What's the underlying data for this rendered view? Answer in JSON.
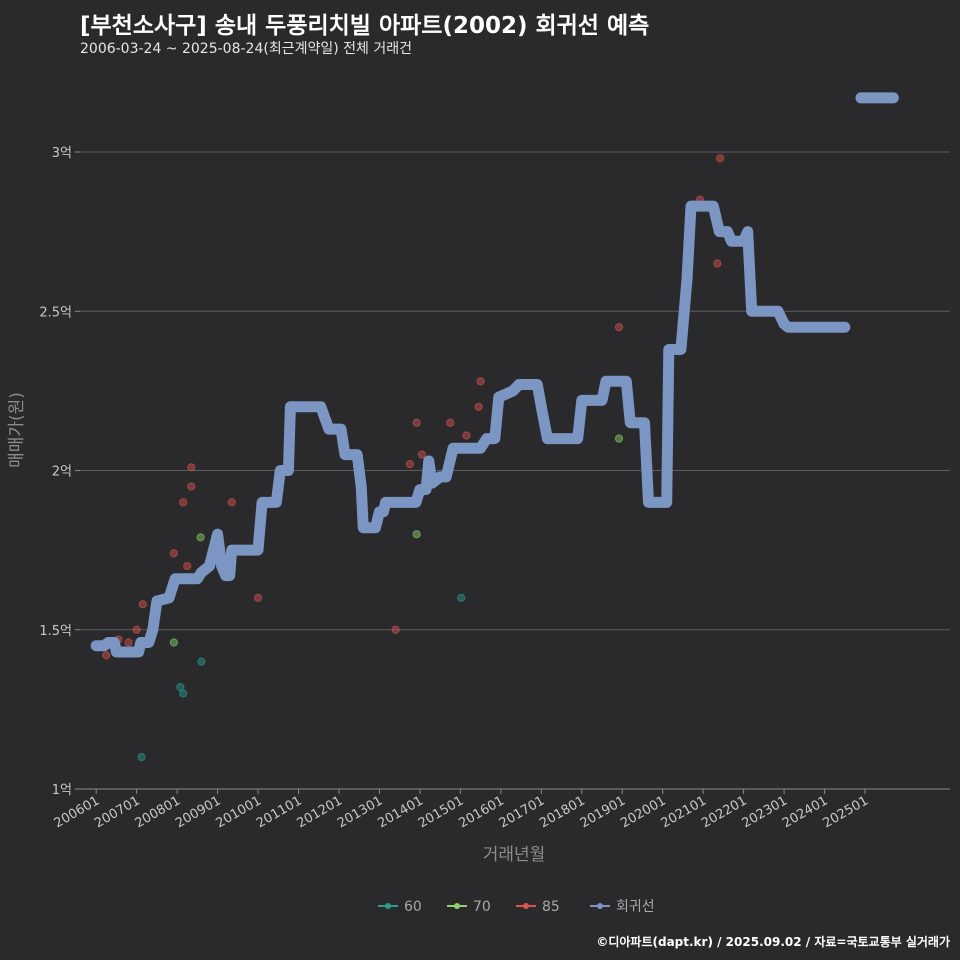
{
  "title": "[부천소사구] 송내 두풍리치빌 아파트(2002) 회귀선 예측",
  "subtitle": "2006-03-24 ~ 2025-08-24(최근계약일) 전체 거래건",
  "footer": "©디아파트(dapt.kr) / 2025.09.02 / 자료=국토교통부 실거래가",
  "chart_data": {
    "type": "scatter",
    "xlabel": "거래년월",
    "ylabel": "매매가(원)",
    "ylim": [
      1.0,
      3.2
    ],
    "y_ticks": [
      1.0,
      1.5,
      2.0,
      2.5,
      3.0
    ],
    "y_tick_labels": [
      "1억",
      "1.5억",
      "2억",
      "2.5억",
      "3억"
    ],
    "x_ticks": [
      2006.0,
      2007.0,
      2008.0,
      2009.0,
      2010.0,
      2011.0,
      2012.0,
      2013.0,
      2014.0,
      2015.0,
      2016.0,
      2017.0,
      2018.0,
      2019.0,
      2020.0,
      2021.0,
      2022.0,
      2023.0,
      2024.0,
      2025.0
    ],
    "x_tick_labels": [
      "200601",
      "200701",
      "200801",
      "200901",
      "201001",
      "201101",
      "201201",
      "201301",
      "201401",
      "201501",
      "201601",
      "201701",
      "201801",
      "201901",
      "202001",
      "202101",
      "202201",
      "202301",
      "202401",
      "202501"
    ],
    "grid": true,
    "legend_position": "bottom",
    "legend": [
      {
        "label": "60",
        "color": "#2a9d8f"
      },
      {
        "label": "70",
        "color": "#8fd16a"
      },
      {
        "label": "85",
        "color": "#d9534f"
      },
      {
        "label": "회귀선",
        "color": "#7b96c2"
      }
    ],
    "series": [
      {
        "name": "60",
        "color": "#2a9d8f",
        "points": [
          [
            2007.12,
            1.1
          ],
          [
            2008.08,
            1.32
          ],
          [
            2008.15,
            1.3
          ],
          [
            2008.6,
            1.4
          ],
          [
            2015.02,
            1.6
          ]
        ]
      },
      {
        "name": "70",
        "color": "#8fd16a",
        "points": [
          [
            2007.92,
            1.46
          ],
          [
            2008.58,
            1.79
          ],
          [
            2013.92,
            1.8
          ],
          [
            2018.92,
            2.1
          ]
        ]
      },
      {
        "name": "85",
        "color": "#d9534f",
        "points": [
          [
            2006.25,
            1.42
          ],
          [
            2006.55,
            1.47
          ],
          [
            2006.8,
            1.46
          ],
          [
            2007.0,
            1.5
          ],
          [
            2007.15,
            1.58
          ],
          [
            2007.92,
            1.74
          ],
          [
            2008.15,
            1.9
          ],
          [
            2008.25,
            1.7
          ],
          [
            2008.35,
            1.95
          ],
          [
            2008.35,
            2.01
          ],
          [
            2009.35,
            1.9
          ],
          [
            2010.0,
            1.6
          ],
          [
            2013.4,
            1.5
          ],
          [
            2013.75,
            2.02
          ],
          [
            2013.92,
            2.15
          ],
          [
            2014.05,
            2.05
          ],
          [
            2014.75,
            2.15
          ],
          [
            2015.15,
            2.11
          ],
          [
            2015.45,
            2.2
          ],
          [
            2015.5,
            2.28
          ],
          [
            2018.92,
            2.45
          ],
          [
            2020.92,
            2.85
          ],
          [
            2021.35,
            2.65
          ],
          [
            2021.42,
            2.98
          ]
        ]
      }
    ],
    "regression": {
      "name": "회귀선",
      "color": "#7b96c2",
      "points": [
        [
          2006.0,
          1.45
        ],
        [
          2006.2,
          1.45
        ],
        [
          2006.3,
          1.46
        ],
        [
          2006.45,
          1.46
        ],
        [
          2006.5,
          1.43
        ],
        [
          2007.05,
          1.43
        ],
        [
          2007.1,
          1.46
        ],
        [
          2007.3,
          1.46
        ],
        [
          2007.4,
          1.5
        ],
        [
          2007.5,
          1.59
        ],
        [
          2007.8,
          1.6
        ],
        [
          2007.95,
          1.66
        ],
        [
          2008.5,
          1.66
        ],
        [
          2008.6,
          1.68
        ],
        [
          2008.8,
          1.7
        ],
        [
          2008.92,
          1.76
        ],
        [
          2009.0,
          1.8
        ],
        [
          2009.1,
          1.7
        ],
        [
          2009.2,
          1.67
        ],
        [
          2009.3,
          1.67
        ],
        [
          2009.35,
          1.75
        ],
        [
          2010.0,
          1.75
        ],
        [
          2010.1,
          1.9
        ],
        [
          2010.45,
          1.9
        ],
        [
          2010.55,
          2.0
        ],
        [
          2010.75,
          2.0
        ],
        [
          2010.8,
          2.2
        ],
        [
          2011.55,
          2.2
        ],
        [
          2011.75,
          2.13
        ],
        [
          2012.05,
          2.13
        ],
        [
          2012.15,
          2.05
        ],
        [
          2012.45,
          2.05
        ],
        [
          2012.55,
          1.95
        ],
        [
          2012.6,
          1.82
        ],
        [
          2012.9,
          1.82
        ],
        [
          2013.0,
          1.87
        ],
        [
          2013.1,
          1.87
        ],
        [
          2013.15,
          1.9
        ],
        [
          2013.75,
          1.9
        ],
        [
          2013.9,
          1.9
        ],
        [
          2014.0,
          1.94
        ],
        [
          2014.15,
          1.94
        ],
        [
          2014.22,
          2.03
        ],
        [
          2014.3,
          1.96
        ],
        [
          2014.5,
          1.98
        ],
        [
          2014.65,
          1.98
        ],
        [
          2014.82,
          2.07
        ],
        [
          2015.5,
          2.07
        ],
        [
          2015.65,
          2.1
        ],
        [
          2015.85,
          2.1
        ],
        [
          2015.95,
          2.23
        ],
        [
          2016.3,
          2.25
        ],
        [
          2016.45,
          2.27
        ],
        [
          2016.9,
          2.27
        ],
        [
          2017.0,
          2.2
        ],
        [
          2017.15,
          2.1
        ],
        [
          2017.9,
          2.1
        ],
        [
          2018.0,
          2.22
        ],
        [
          2018.5,
          2.22
        ],
        [
          2018.6,
          2.28
        ],
        [
          2019.1,
          2.28
        ],
        [
          2019.2,
          2.15
        ],
        [
          2019.55,
          2.15
        ],
        [
          2019.65,
          1.9
        ],
        [
          2020.1,
          1.9
        ],
        [
          2020.15,
          2.38
        ],
        [
          2020.45,
          2.38
        ],
        [
          2020.6,
          2.6
        ],
        [
          2020.7,
          2.83
        ],
        [
          2021.25,
          2.83
        ],
        [
          2021.4,
          2.75
        ],
        [
          2021.6,
          2.75
        ],
        [
          2021.7,
          2.72
        ],
        [
          2022.0,
          2.72
        ],
        [
          2022.1,
          2.75
        ],
        [
          2022.2,
          2.5
        ],
        [
          2022.85,
          2.5
        ],
        [
          2023.0,
          2.46
        ],
        [
          2023.1,
          2.45
        ],
        [
          2024.5,
          2.45
        ]
      ],
      "forecast_points": [
        [
          2024.9,
          3.17
        ],
        [
          2025.7,
          3.17
        ]
      ]
    }
  }
}
